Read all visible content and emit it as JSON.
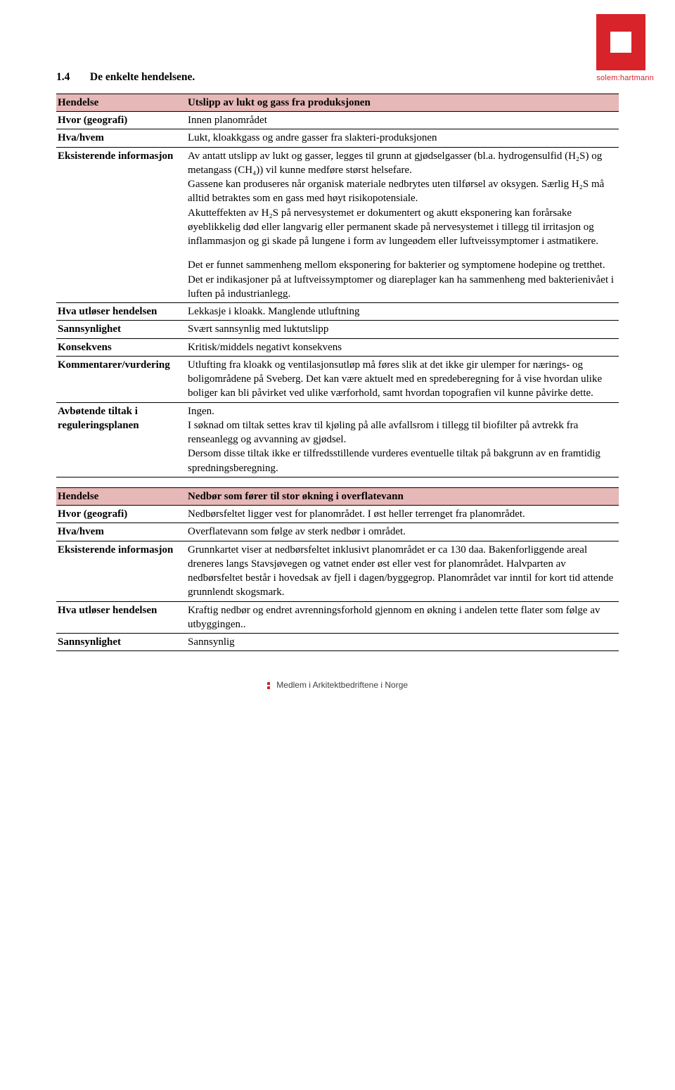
{
  "colors": {
    "brand_red": "#d9232a",
    "row_header_bg": "#e6b8b7",
    "border": "#000000",
    "text": "#000000",
    "footer_text": "#404040",
    "background": "#ffffff"
  },
  "typography": {
    "body_family": "Times New Roman",
    "body_size_pt": 11,
    "heading_weight": "bold",
    "logo_family": "Arial"
  },
  "logo": {
    "text": "solem:hartmann"
  },
  "section": {
    "number": "1.4",
    "title": "De enkelte hendelsene."
  },
  "labels": {
    "hendelse": "Hendelse",
    "hvor": "Hvor (geografi)",
    "hva": "Hva/hvem",
    "eksisterende": "Eksisterende informasjon",
    "utloser": "Hva utløser hendelsen",
    "sannsynlighet": "Sannsynlighet",
    "konsekvens": "Konsekvens",
    "kommentarer": "Kommentarer/vurdering",
    "avbotende": "Avbøtende tiltak i reguleringsplanen"
  },
  "t1": {
    "hendelse": "Utslipp av lukt og gass fra produksjonen",
    "hvor": "Innen planområdet",
    "hva": "Lukt, kloakkgass og andre gasser fra slakteri-produksjonen",
    "eksisterende_p1": "Av antatt utslipp av lukt og gasser, legges til grunn at gjødselgasser (bl.a. hydrogensulfid (H₂S) og metangass (CH₄)) vil kunne medføre størst helsefare.",
    "eksisterende_p2": "Gassene kan produseres når organisk materiale nedbrytes uten tilførsel av oksygen. Særlig H₂S må alltid betraktes som en gass med høyt risikopotensiale.",
    "eksisterende_p3": "Akutteffekten av H₂S på nervesystemet er dokumentert og akutt eksponering kan forårsake øyeblikkelig død eller langvarig eller permanent skade på nervesystemet i tillegg til irritasjon og inflammasjon og gi skade på lungene i form av lungeødem eller luftveissymptomer i astmatikere.",
    "eksisterende_p4": "Det er funnet sammenheng mellom eksponering for bakterier og symptomene hodepine og tretthet. Det er indikasjoner på at luftveissymptomer og diareplager kan ha sammenheng med bakterienivået i luften på industrianlegg.",
    "utloser": "Lekkasje i kloakk. Manglende utluftning",
    "sannsynlighet": "Svært sannsynlig med luktutslipp",
    "konsekvens": "Kritisk/middels negativt konsekvens",
    "kommentarer": "Utlufting fra kloakk og ventilasjonsutløp må føres slik at det ikke gir ulemper for nærings- og boligområdene på Sveberg. Det kan være aktuelt med en spredeberegning for å vise hvordan ulike boliger kan bli påvirket ved ulike værforhold, samt hvordan topografien vil kunne påvirke dette.",
    "avbotende_p1": "Ingen.",
    "avbotende_p2": "I søknad om tiltak settes krav til kjøling på alle avfallsrom i tillegg til biofilter på avtrekk fra renseanlegg og avvanning av gjødsel.",
    "avbotende_p3": "Dersom disse tiltak ikke er tilfredsstillende vurderes eventuelle tiltak på bakgrunn av en framtidig spredningsberegning."
  },
  "t2": {
    "hendelse": "Nedbør som fører til stor økning i overflatevann",
    "hvor": "Nedbørsfeltet ligger vest for planområdet. I øst heller terrenget fra planområdet.",
    "hva": "Overflatevann som følge av sterk nedbør i området.",
    "eksisterende": "Grunnkartet viser at nedbørsfeltet inklusivt planområdet er ca 130 daa. Bakenforliggende areal dreneres langs Stavsjøvegen og vatnet ender øst eller vest for planområdet. Halvparten av nedbørsfeltet består i hovedsak av fjell i dagen/byggegrop. Planområdet var inntil for kort tid attende grunnlendt skogsmark.",
    "utloser": "Kraftig nedbør og endret avrenningsforhold gjennom en økning i andelen tette flater som følge av utbyggingen..",
    "sannsynlighet": "Sannsynlig"
  },
  "footer": {
    "text": "Medlem i Arkitektbedriftene i Norge"
  }
}
